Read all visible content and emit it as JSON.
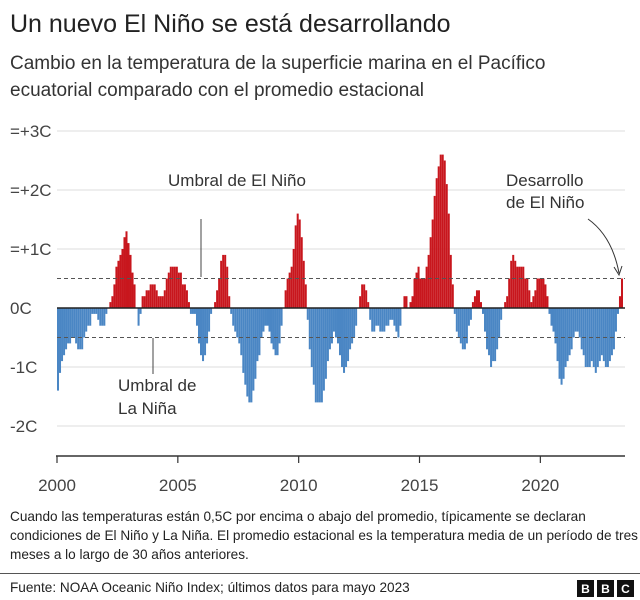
{
  "header": {
    "title": "Un nuevo El Niño se está desarrollando",
    "subtitle": "Cambio en la temperatura de la superficie marina en el Pacífico ecuatorial comparado con el promedio estacional"
  },
  "chart_data": {
    "type": "bar",
    "x_start": "2000-01",
    "x_end": "2023-05",
    "frequency": "monthly",
    "xlim": [
      2000,
      2023.42
    ],
    "ylim": [
      -2.5,
      3
    ],
    "y_ticks": [
      {
        "value": 3,
        "label": "=+3C"
      },
      {
        "value": 2,
        "label": "=+2C"
      },
      {
        "value": 1,
        "label": "=+1C"
      },
      {
        "value": 0,
        "label": "0C"
      },
      {
        "value": -1,
        "label": "-1C"
      },
      {
        "value": -2,
        "label": "-2C"
      }
    ],
    "x_ticks": [
      {
        "value": 2000,
        "label": "2000"
      },
      {
        "value": 2005,
        "label": "2005"
      },
      {
        "value": 2010,
        "label": "2010"
      },
      {
        "value": 2015,
        "label": "2015"
      },
      {
        "value": 2020,
        "label": "2020"
      }
    ],
    "grid": true,
    "thresholds": [
      0.5,
      -0.5
    ],
    "colors": {
      "positive": "#c8161d",
      "negative": "#4a86c4",
      "grid": "#dddddd",
      "threshold": "#555555"
    },
    "annotations": {
      "el_nino_threshold": "Umbral de El Niño",
      "la_nina_threshold_1": "Umbral de",
      "la_nina_threshold_2": "La Niña",
      "development_1": "Desarrollo",
      "development_2": "de El Niño"
    },
    "values": [
      -1.4,
      -1.1,
      -0.9,
      -0.8,
      -0.7,
      -0.6,
      -0.6,
      -0.5,
      -0.5,
      -0.6,
      -0.7,
      -0.7,
      -0.7,
      -0.5,
      -0.4,
      -0.3,
      -0.3,
      -0.1,
      -0.1,
      -0.1,
      -0.2,
      -0.3,
      -0.3,
      -0.3,
      -0.1,
      0.0,
      0.1,
      0.2,
      0.4,
      0.7,
      0.8,
      0.9,
      1.0,
      1.2,
      1.3,
      1.1,
      0.9,
      0.6,
      0.4,
      0.0,
      -0.3,
      -0.1,
      0.2,
      0.2,
      0.3,
      0.3,
      0.4,
      0.4,
      0.4,
      0.3,
      0.2,
      0.2,
      0.2,
      0.3,
      0.5,
      0.6,
      0.7,
      0.7,
      0.7,
      0.7,
      0.6,
      0.6,
      0.4,
      0.4,
      0.3,
      0.1,
      -0.1,
      -0.1,
      -0.1,
      -0.3,
      -0.6,
      -0.8,
      -0.9,
      -0.8,
      -0.6,
      -0.4,
      -0.1,
      0.0,
      0.1,
      0.3,
      0.5,
      0.8,
      0.9,
      0.9,
      0.7,
      0.2,
      -0.1,
      -0.3,
      -0.4,
      -0.5,
      -0.6,
      -0.8,
      -1.1,
      -1.3,
      -1.5,
      -1.6,
      -1.6,
      -1.4,
      -1.2,
      -0.9,
      -0.8,
      -0.5,
      -0.4,
      -0.3,
      -0.3,
      -0.4,
      -0.6,
      -0.7,
      -0.8,
      -0.8,
      -0.6,
      -0.3,
      0.0,
      0.3,
      0.5,
      0.6,
      0.7,
      1.0,
      1.4,
      1.6,
      1.5,
      1.2,
      0.8,
      0.4,
      -0.2,
      -0.7,
      -1.0,
      -1.3,
      -1.6,
      -1.6,
      -1.6,
      -1.6,
      -1.4,
      -1.2,
      -0.9,
      -0.7,
      -0.6,
      -0.4,
      -0.5,
      -0.6,
      -0.8,
      -1.0,
      -1.1,
      -1.0,
      -0.9,
      -0.7,
      -0.6,
      -0.5,
      -0.3,
      0.0,
      0.2,
      0.4,
      0.4,
      0.3,
      0.1,
      -0.2,
      -0.4,
      -0.4,
      -0.3,
      -0.3,
      -0.4,
      -0.4,
      -0.4,
      -0.3,
      -0.3,
      -0.2,
      -0.2,
      -0.3,
      -0.4,
      -0.5,
      -0.3,
      0.0,
      0.2,
      0.2,
      0.0,
      0.1,
      0.2,
      0.5,
      0.6,
      0.7,
      0.5,
      0.5,
      0.5,
      0.7,
      0.9,
      1.2,
      1.5,
      1.9,
      2.2,
      2.4,
      2.6,
      2.6,
      2.5,
      2.1,
      1.6,
      0.9,
      0.4,
      -0.1,
      -0.4,
      -0.5,
      -0.6,
      -0.7,
      -0.7,
      -0.6,
      -0.3,
      -0.2,
      0.1,
      0.2,
      0.3,
      0.3,
      0.1,
      -0.1,
      -0.4,
      -0.7,
      -0.8,
      -1.0,
      -0.9,
      -0.9,
      -0.7,
      -0.5,
      -0.2,
      0.0,
      0.1,
      0.2,
      0.5,
      0.8,
      0.9,
      0.8,
      0.7,
      0.7,
      0.7,
      0.7,
      0.5,
      0.5,
      0.3,
      0.1,
      0.2,
      0.3,
      0.5,
      0.5,
      0.5,
      0.5,
      0.4,
      0.2,
      -0.1,
      -0.3,
      -0.4,
      -0.6,
      -0.9,
      -1.2,
      -1.3,
      -1.2,
      -1.0,
      -0.9,
      -0.8,
      -0.7,
      -0.5,
      -0.4,
      -0.4,
      -0.5,
      -0.7,
      -0.8,
      -1.0,
      -1.0,
      -1.0,
      -0.9,
      -1.0,
      -1.1,
      -1.0,
      -0.9,
      -0.8,
      -0.9,
      -1.0,
      -1.0,
      -0.9,
      -0.8,
      -0.7,
      -0.4,
      -0.1,
      0.2,
      0.5
    ]
  },
  "footer": {
    "note": "Cuando las temperaturas están 0,5C por encima o abajo del promedio, típicamente se declaran condiciones de El Niño y La Niña. El promedio estacional es la temperatura media de un período de tres meses a lo largo de 30 años anteriores.",
    "source": "Fuente: NOAA Oceanic Niño Index; últimos datos para mayo 2023",
    "logo": "BBC"
  }
}
